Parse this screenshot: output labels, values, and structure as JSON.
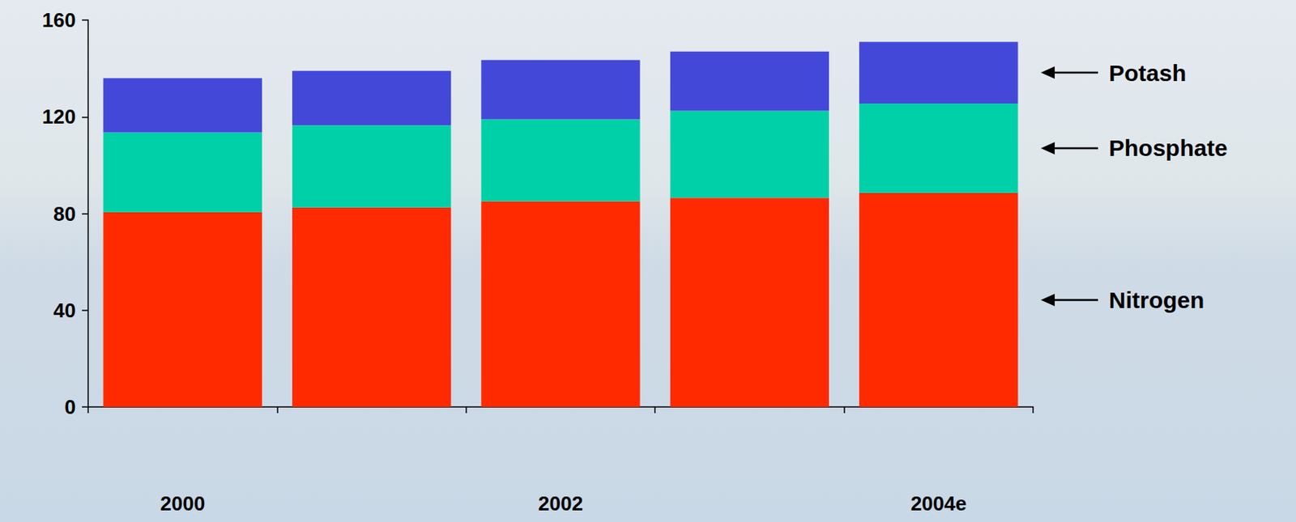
{
  "chart_data": {
    "type": "bar",
    "stacked": true,
    "grid": false,
    "legend": "right",
    "categories": [
      "2000",
      null,
      "2002",
      null,
      "2004e"
    ],
    "series": [
      {
        "name": "Nitrogen",
        "color": "#ff2a00",
        "values": [
          80.5,
          82.5,
          85,
          86.5,
          88.5
        ]
      },
      {
        "name": "Phosphate",
        "color": "#00d0a8",
        "values": [
          33,
          34,
          34,
          36,
          37
        ]
      },
      {
        "name": "Potash",
        "color": "#4348d8",
        "values": [
          22.5,
          22.5,
          24.5,
          24.5,
          25.5
        ]
      }
    ],
    "ylim": [
      0,
      160
    ],
    "yticks": [
      0,
      40,
      80,
      120,
      160
    ]
  }
}
